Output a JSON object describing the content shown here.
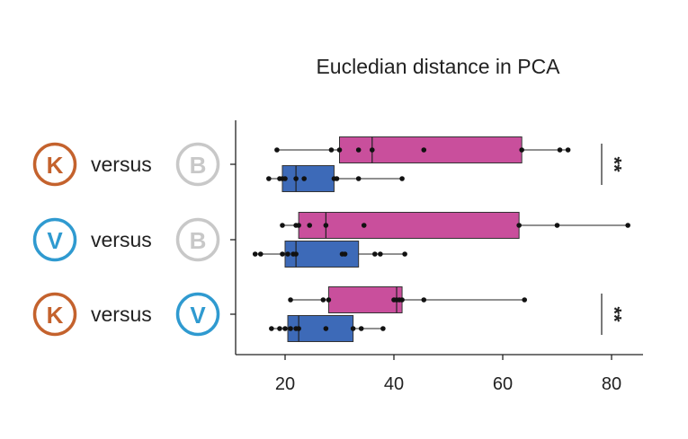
{
  "chart_data": {
    "type": "boxplot",
    "title": "Eucledian distance in PCA",
    "xlim": [
      10,
      86
    ],
    "x_ticks": [
      20,
      40,
      60,
      80
    ],
    "x_tick_labels": [
      "20",
      "40",
      "60",
      "80"
    ],
    "colors": {
      "magenta": "#c94f9c",
      "blue": "#3d6ab8",
      "K": "#c4622d",
      "V": "#2f9ad0",
      "B": "#c8c8c8",
      "text": "#222222"
    },
    "groups": [
      {
        "left": {
          "letter": "K",
          "color_key": "K"
        },
        "word": "versus",
        "right": {
          "letter": "B",
          "color_key": "B"
        },
        "significance": "**",
        "boxes": [
          {
            "color_key": "magenta",
            "whisker_low": 18.5,
            "q1": 30,
            "median": 36,
            "q3": 63.5,
            "whisker_high": 72,
            "points": [
              18.5,
              28.5,
              30,
              33.5,
              36,
              45.5,
              63.5,
              70.5,
              72
            ]
          },
          {
            "color_key": "blue",
            "whisker_low": 17,
            "q1": 19.5,
            "median": 22,
            "q3": 29,
            "whisker_high": 41.5,
            "points": [
              17,
              19,
              19.5,
              20,
              22,
              23.5,
              29,
              29.5,
              33.5,
              41.5
            ]
          }
        ]
      },
      {
        "left": {
          "letter": "V",
          "color_key": "V"
        },
        "word": "versus",
        "right": {
          "letter": "B",
          "color_key": "B"
        },
        "significance": "",
        "boxes": [
          {
            "color_key": "magenta",
            "whisker_low": 19.5,
            "q1": 22.5,
            "median": 27.5,
            "q3": 63,
            "whisker_high": 83,
            "points": [
              19.5,
              22,
              22.5,
              24.5,
              27.5,
              34.5,
              63,
              70,
              83
            ]
          },
          {
            "color_key": "blue",
            "whisker_low": 14.5,
            "q1": 20,
            "median": 22,
            "q3": 33.5,
            "whisker_high": 42,
            "points": [
              14.5,
              15.5,
              19.5,
              20.5,
              21.5,
              22,
              30.5,
              31,
              36.5,
              37.5,
              42
            ]
          }
        ]
      },
      {
        "left": {
          "letter": "K",
          "color_key": "K"
        },
        "word": "versus",
        "right": {
          "letter": "V",
          "color_key": "V"
        },
        "significance": "**",
        "boxes": [
          {
            "color_key": "magenta",
            "whisker_low": 21,
            "q1": 28,
            "median": 40.5,
            "q3": 41.5,
            "whisker_high": 64,
            "points": [
              21,
              27,
              28,
              40,
              40.5,
              41,
              41.5,
              45.5,
              64
            ]
          },
          {
            "color_key": "blue",
            "whisker_low": 17.5,
            "q1": 20.5,
            "median": 22.5,
            "q3": 32.5,
            "whisker_high": 38,
            "points": [
              17.5,
              19,
              20,
              21,
              22,
              22.5,
              27.5,
              32.5,
              34,
              38
            ]
          }
        ]
      }
    ]
  }
}
